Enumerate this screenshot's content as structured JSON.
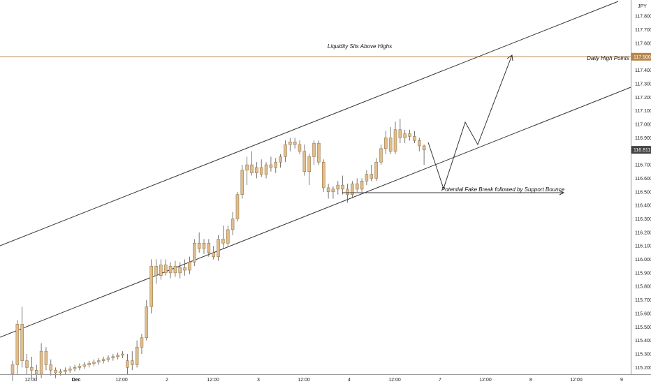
{
  "chart_data": {
    "type": "candlestick",
    "currency": "JPY",
    "ylim": [
      115.15,
      117.92
    ],
    "y_ticks": [
      "117.800",
      "117.700",
      "117.600",
      "117.500",
      "117.400",
      "117.300",
      "117.200",
      "117.100",
      "117.000",
      "116.900",
      "116.800",
      "116.700",
      "116.600",
      "116.500",
      "116.400",
      "116.300",
      "116.200",
      "116.100",
      "116.000",
      "115.900",
      "115.800",
      "115.700",
      "115.600",
      "115.500",
      "115.400",
      "115.300",
      "115.200"
    ],
    "x_ticks": [
      "12:00",
      "Dec",
      "12:00",
      "2",
      "12:00",
      "3",
      "12:00",
      "4",
      "12:00",
      "7",
      "12:00",
      "8",
      "12:00",
      "9"
    ],
    "current_price": "116.811",
    "level_price": "117.500",
    "annotations": {
      "liquidity": "Liquidity Sits Above Highs",
      "daily_high": "Daily High Points",
      "fake_break": "Potential Fake Break followed by Support Bounce"
    },
    "colors": {
      "candle_body": "#e0be8c",
      "candle_border": "#8a6a3c",
      "wick": "#555555",
      "level_line": "#b8864b",
      "level_label_bg": "#b8864b",
      "price_label_bg": "#444444",
      "trend_line": "#333333"
    },
    "candles": [
      {
        "o": 115.15,
        "h": 115.25,
        "l": 115.1,
        "c": 115.22
      },
      {
        "o": 115.22,
        "h": 115.55,
        "l": 115.15,
        "c": 115.52
      },
      {
        "o": 115.52,
        "h": 115.65,
        "l": 115.2,
        "c": 115.25
      },
      {
        "o": 115.25,
        "h": 115.3,
        "l": 115.15,
        "c": 115.2
      },
      {
        "o": 115.2,
        "h": 115.28,
        "l": 115.12,
        "c": 115.18
      },
      {
        "o": 115.18,
        "h": 115.22,
        "l": 115.1,
        "c": 115.15
      },
      {
        "o": 115.15,
        "h": 115.38,
        "l": 115.12,
        "c": 115.32
      },
      {
        "o": 115.32,
        "h": 115.35,
        "l": 115.18,
        "c": 115.22
      },
      {
        "o": 115.22,
        "h": 115.26,
        "l": 115.14,
        "c": 115.18
      },
      {
        "o": 115.18,
        "h": 115.2,
        "l": 115.12,
        "c": 115.16
      },
      {
        "o": 115.16,
        "h": 115.19,
        "l": 115.14,
        "c": 115.17
      },
      {
        "o": 115.17,
        "h": 115.2,
        "l": 115.15,
        "c": 115.18
      },
      {
        "o": 115.18,
        "h": 115.21,
        "l": 115.16,
        "c": 115.19
      },
      {
        "o": 115.19,
        "h": 115.22,
        "l": 115.17,
        "c": 115.2
      },
      {
        "o": 115.2,
        "h": 115.23,
        "l": 115.18,
        "c": 115.21
      },
      {
        "o": 115.21,
        "h": 115.24,
        "l": 115.19,
        "c": 115.22
      },
      {
        "o": 115.22,
        "h": 115.25,
        "l": 115.2,
        "c": 115.23
      },
      {
        "o": 115.23,
        "h": 115.26,
        "l": 115.21,
        "c": 115.24
      },
      {
        "o": 115.24,
        "h": 115.27,
        "l": 115.22,
        "c": 115.25
      },
      {
        "o": 115.25,
        "h": 115.28,
        "l": 115.23,
        "c": 115.26
      },
      {
        "o": 115.26,
        "h": 115.29,
        "l": 115.24,
        "c": 115.27
      },
      {
        "o": 115.27,
        "h": 115.3,
        "l": 115.25,
        "c": 115.28
      },
      {
        "o": 115.28,
        "h": 115.31,
        "l": 115.26,
        "c": 115.29
      },
      {
        "o": 115.29,
        "h": 115.32,
        "l": 115.27,
        "c": 115.3
      },
      {
        "o": 115.2,
        "h": 115.3,
        "l": 115.15,
        "c": 115.25
      },
      {
        "o": 115.25,
        "h": 115.32,
        "l": 115.18,
        "c": 115.22
      },
      {
        "o": 115.22,
        "h": 115.4,
        "l": 115.2,
        "c": 115.35
      },
      {
        "o": 115.35,
        "h": 115.45,
        "l": 115.3,
        "c": 115.42
      },
      {
        "o": 115.42,
        "h": 115.7,
        "l": 115.4,
        "c": 115.65
      },
      {
        "o": 115.65,
        "h": 116.0,
        "l": 115.6,
        "c": 115.95
      },
      {
        "o": 115.95,
        "h": 116.0,
        "l": 115.82,
        "c": 115.88
      },
      {
        "o": 115.88,
        "h": 116.0,
        "l": 115.85,
        "c": 115.96
      },
      {
        "o": 115.96,
        "h": 116.0,
        "l": 115.88,
        "c": 115.9
      },
      {
        "o": 115.9,
        "h": 115.98,
        "l": 115.86,
        "c": 115.95
      },
      {
        "o": 115.95,
        "h": 115.99,
        "l": 115.87,
        "c": 115.9
      },
      {
        "o": 115.9,
        "h": 115.98,
        "l": 115.86,
        "c": 115.94
      },
      {
        "o": 115.94,
        "h": 116.0,
        "l": 115.88,
        "c": 115.92
      },
      {
        "o": 115.92,
        "h": 116.02,
        "l": 115.89,
        "c": 115.98
      },
      {
        "o": 115.98,
        "h": 116.15,
        "l": 115.95,
        "c": 116.12
      },
      {
        "o": 116.12,
        "h": 116.2,
        "l": 116.05,
        "c": 116.08
      },
      {
        "o": 116.08,
        "h": 116.15,
        "l": 116.04,
        "c": 116.12
      },
      {
        "o": 116.12,
        "h": 116.15,
        "l": 116.02,
        "c": 116.05
      },
      {
        "o": 116.05,
        "h": 116.1,
        "l": 116.0,
        "c": 116.02
      },
      {
        "o": 116.02,
        "h": 116.18,
        "l": 115.99,
        "c": 116.15
      },
      {
        "o": 116.15,
        "h": 116.25,
        "l": 116.08,
        "c": 116.12
      },
      {
        "o": 116.12,
        "h": 116.25,
        "l": 116.1,
        "c": 116.22
      },
      {
        "o": 116.22,
        "h": 116.35,
        "l": 116.18,
        "c": 116.3
      },
      {
        "o": 116.3,
        "h": 116.5,
        "l": 116.28,
        "c": 116.48
      },
      {
        "o": 116.48,
        "h": 116.7,
        "l": 116.45,
        "c": 116.66
      },
      {
        "o": 116.66,
        "h": 116.76,
        "l": 116.55,
        "c": 116.7
      },
      {
        "o": 116.7,
        "h": 116.8,
        "l": 116.62,
        "c": 116.64
      },
      {
        "o": 116.64,
        "h": 116.72,
        "l": 116.6,
        "c": 116.68
      },
      {
        "o": 116.68,
        "h": 116.74,
        "l": 116.61,
        "c": 116.63
      },
      {
        "o": 116.63,
        "h": 116.72,
        "l": 116.6,
        "c": 116.7
      },
      {
        "o": 116.7,
        "h": 116.76,
        "l": 116.65,
        "c": 116.68
      },
      {
        "o": 116.68,
        "h": 116.75,
        "l": 116.64,
        "c": 116.72
      },
      {
        "o": 116.72,
        "h": 116.78,
        "l": 116.68,
        "c": 116.76
      },
      {
        "o": 116.76,
        "h": 116.88,
        "l": 116.72,
        "c": 116.85
      },
      {
        "o": 116.85,
        "h": 116.9,
        "l": 116.8,
        "c": 116.87
      },
      {
        "o": 116.87,
        "h": 116.9,
        "l": 116.82,
        "c": 116.85
      },
      {
        "o": 116.85,
        "h": 116.88,
        "l": 116.78,
        "c": 116.8
      },
      {
        "o": 116.8,
        "h": 116.85,
        "l": 116.62,
        "c": 116.65
      },
      {
        "o": 116.65,
        "h": 116.78,
        "l": 116.55,
        "c": 116.76
      },
      {
        "o": 116.76,
        "h": 116.88,
        "l": 116.7,
        "c": 116.86
      },
      {
        "o": 116.86,
        "h": 116.88,
        "l": 116.7,
        "c": 116.72
      },
      {
        "o": 116.72,
        "h": 116.74,
        "l": 116.5,
        "c": 116.53
      },
      {
        "o": 116.53,
        "h": 116.56,
        "l": 116.45,
        "c": 116.5
      },
      {
        "o": 116.5,
        "h": 116.54,
        "l": 116.45,
        "c": 116.52
      },
      {
        "o": 116.52,
        "h": 116.58,
        "l": 116.48,
        "c": 116.55
      },
      {
        "o": 116.55,
        "h": 116.62,
        "l": 116.48,
        "c": 116.52
      },
      {
        "o": 116.52,
        "h": 116.56,
        "l": 116.42,
        "c": 116.48
      },
      {
        "o": 116.48,
        "h": 116.58,
        "l": 116.46,
        "c": 116.56
      },
      {
        "o": 116.56,
        "h": 116.6,
        "l": 116.5,
        "c": 116.52
      },
      {
        "o": 116.52,
        "h": 116.6,
        "l": 116.5,
        "c": 116.58
      },
      {
        "o": 116.58,
        "h": 116.66,
        "l": 116.55,
        "c": 116.63
      },
      {
        "o": 116.63,
        "h": 116.7,
        "l": 116.58,
        "c": 116.6
      },
      {
        "o": 116.6,
        "h": 116.75,
        "l": 116.58,
        "c": 116.72
      },
      {
        "o": 116.72,
        "h": 116.85,
        "l": 116.7,
        "c": 116.82
      },
      {
        "o": 116.82,
        "h": 116.95,
        "l": 116.78,
        "c": 116.9
      },
      {
        "o": 116.9,
        "h": 116.98,
        "l": 116.78,
        "c": 116.8
      },
      {
        "o": 116.8,
        "h": 117.02,
        "l": 116.78,
        "c": 116.96
      },
      {
        "o": 116.96,
        "h": 117.04,
        "l": 116.86,
        "c": 116.9
      },
      {
        "o": 116.9,
        "h": 116.96,
        "l": 116.86,
        "c": 116.93
      },
      {
        "o": 116.93,
        "h": 116.96,
        "l": 116.88,
        "c": 116.91
      },
      {
        "o": 116.91,
        "h": 116.95,
        "l": 116.86,
        "c": 116.88
      },
      {
        "o": 116.88,
        "h": 116.9,
        "l": 116.8,
        "c": 116.84
      },
      {
        "o": 116.84,
        "h": 116.85,
        "l": 116.7,
        "c": 116.81
      }
    ]
  }
}
